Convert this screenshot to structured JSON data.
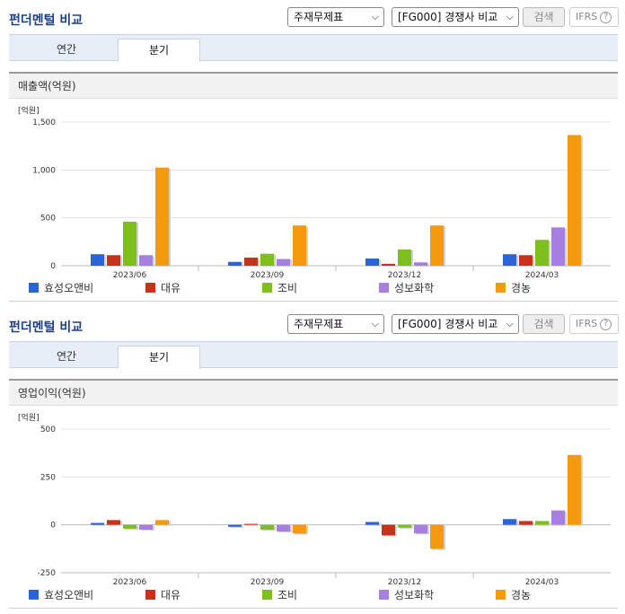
{
  "panels": [
    {
      "title": "펀더멘털 비교",
      "select_statement": "주재무제표",
      "select_compare": "[FG000] 경쟁사 비교",
      "search_label": "검색",
      "ifrs_label": "IFRS",
      "help_glyph": "?",
      "tabs": [
        {
          "label": "연간"
        },
        {
          "label": "분기"
        }
      ],
      "active_tab": 1,
      "metric": "매출액(억원)"
    },
    {
      "title": "펀더멘털 비교",
      "select_statement": "주재무제표",
      "select_compare": "[FG000] 경쟁사 비교",
      "search_label": "검색",
      "ifrs_label": "IFRS",
      "help_glyph": "?",
      "tabs": [
        {
          "label": "연간"
        },
        {
          "label": "분기"
        }
      ],
      "active_tab": 1,
      "metric": "영업이익(억원)"
    }
  ],
  "legend": [
    {
      "name": "효성오앤비",
      "color": "#2b63d9"
    },
    {
      "name": "대유",
      "color": "#c8321a"
    },
    {
      "name": "조비",
      "color": "#7ebf1e"
    },
    {
      "name": "성보화학",
      "color": "#a77fe0"
    },
    {
      "name": "경농",
      "color": "#f59a0c"
    }
  ],
  "chart_data": [
    {
      "type": "bar",
      "unit_label": "[억원]",
      "categories": [
        "2023/06",
        "2023/09",
        "2023/12",
        "2024/03"
      ],
      "ylim": [
        0,
        1500
      ],
      "yticks": [
        0,
        500,
        1000,
        1500
      ],
      "ytick_labels": [
        "0",
        "500",
        "1,000",
        "1,500"
      ],
      "grid": true,
      "series": [
        {
          "name": "효성오앤비",
          "values": [
            120,
            40,
            75,
            120
          ]
        },
        {
          "name": "대유",
          "values": [
            110,
            85,
            20,
            110
          ]
        },
        {
          "name": "조비",
          "values": [
            460,
            125,
            170,
            270
          ]
        },
        {
          "name": "성보화학",
          "values": [
            110,
            70,
            35,
            400
          ]
        },
        {
          "name": "경농",
          "values": [
            1025,
            420,
            420,
            1365
          ]
        }
      ]
    },
    {
      "type": "bar",
      "unit_label": "[억원]",
      "categories": [
        "2023/06",
        "2023/09",
        "2023/12",
        "2024/03"
      ],
      "ylim": [
        -250,
        500
      ],
      "yticks": [
        -250,
        0,
        250,
        500
      ],
      "ytick_labels": [
        "-250",
        "0",
        "250",
        "500"
      ],
      "grid": true,
      "series": [
        {
          "name": "효성오앤비",
          "values": [
            10,
            -10,
            15,
            30
          ]
        },
        {
          "name": "대유",
          "values": [
            25,
            5,
            -55,
            20
          ]
        },
        {
          "name": "조비",
          "values": [
            -20,
            -25,
            -15,
            20
          ]
        },
        {
          "name": "성보화학",
          "values": [
            -25,
            -35,
            -45,
            75
          ]
        },
        {
          "name": "경농",
          "values": [
            25,
            -45,
            -125,
            365
          ]
        }
      ]
    }
  ]
}
